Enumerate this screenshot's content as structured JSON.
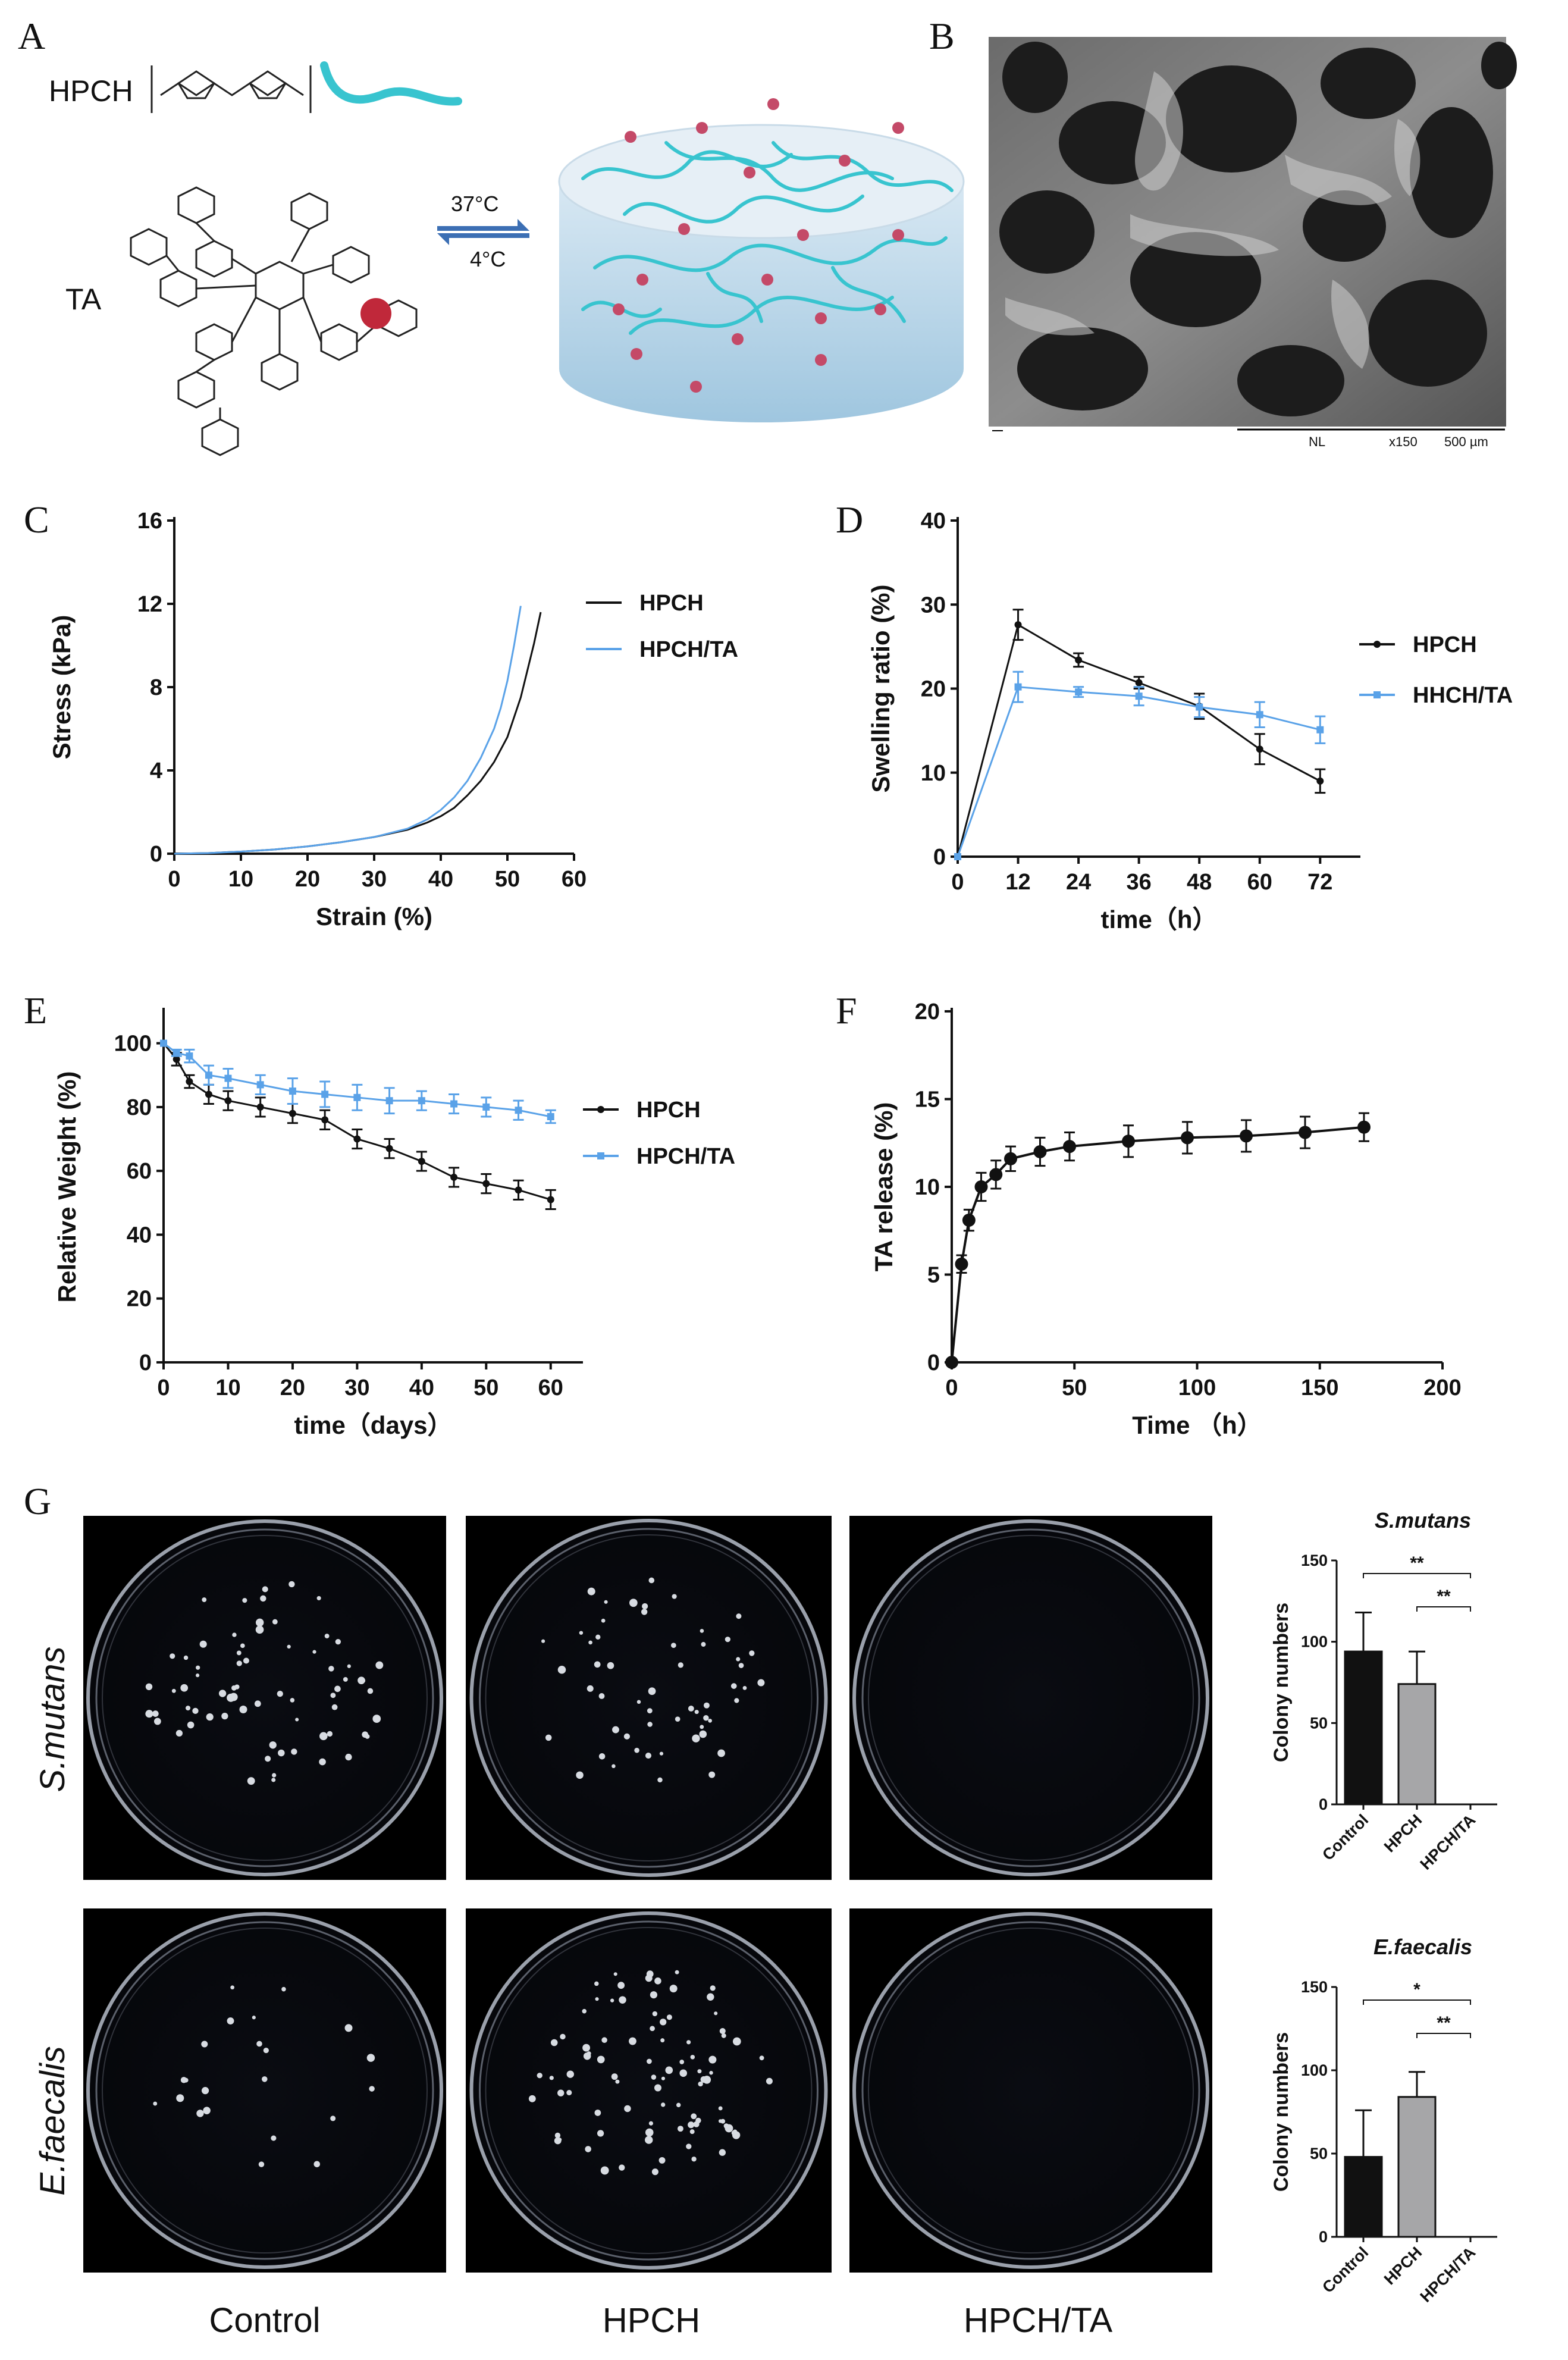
{
  "panels": {
    "a": "A",
    "b": "B",
    "c": "C",
    "d": "D",
    "e": "E",
    "f": "F",
    "g": "G"
  },
  "schematic": {
    "polymer": "HPCH",
    "tannic_acid": "TA",
    "gel_temp": "37°C",
    "sol_temp": "4°C",
    "colors": {
      "chain": "#38c4cf",
      "particle": "#c0283a",
      "gel": "#c2dfee"
    }
  },
  "sem": {
    "detector": "NL",
    "magnification": "x150",
    "scale_bar": "500 µm"
  },
  "colors": {
    "black": "#111111",
    "blue": "#5aa2e8",
    "gray": "#a6a6a8"
  },
  "chart_data": [
    {
      "id": "C",
      "type": "line",
      "xlabel": "Strain (%)",
      "ylabel": "Stress (kPa)",
      "xlim": [
        0,
        60
      ],
      "ylim": [
        0,
        16
      ],
      "xticks": [
        "0",
        "10",
        "20",
        "30",
        "40",
        "50",
        "60"
      ],
      "yticks": [
        "0",
        "4",
        "8",
        "12",
        "16"
      ],
      "series": [
        {
          "name": "HPCH",
          "x": [
            0,
            5,
            10,
            15,
            20,
            25,
            30,
            35,
            38,
            40,
            42,
            44,
            46,
            48,
            50,
            52,
            53,
            54,
            55
          ],
          "y": [
            0,
            0.03,
            0.1,
            0.2,
            0.35,
            0.55,
            0.8,
            1.15,
            1.5,
            1.8,
            2.2,
            2.8,
            3.5,
            4.4,
            5.6,
            7.5,
            8.8,
            10.1,
            11.6
          ]
        },
        {
          "name": "HPCH/TA",
          "x": [
            0,
            5,
            10,
            15,
            20,
            25,
            30,
            35,
            38,
            40,
            42,
            44,
            46,
            48,
            49,
            50,
            51,
            52
          ],
          "y": [
            0,
            0.03,
            0.1,
            0.2,
            0.35,
            0.55,
            0.8,
            1.2,
            1.65,
            2.1,
            2.7,
            3.5,
            4.6,
            6.0,
            7.0,
            8.3,
            10.0,
            11.9
          ]
        }
      ]
    },
    {
      "id": "D",
      "type": "line",
      "xlabel": "time（h）",
      "ylabel": "Swelling ratio (%)",
      "xlim": [
        0,
        80
      ],
      "ylim": [
        0,
        40
      ],
      "xticks": [
        "0",
        "12",
        "24",
        "36",
        "48",
        "60",
        "72"
      ],
      "yticks": [
        "0",
        "10",
        "20",
        "30",
        "40"
      ],
      "series": [
        {
          "name": "HPCH",
          "x": [
            0,
            12,
            24,
            36,
            48,
            60,
            72
          ],
          "y": [
            0,
            27.6,
            23.4,
            20.7,
            17.9,
            12.8,
            9.0
          ],
          "err": [
            0,
            1.8,
            0.8,
            0.7,
            1.5,
            1.8,
            1.4
          ]
        },
        {
          "name": "HHCH/TA",
          "x": [
            0,
            12,
            24,
            36,
            48,
            60,
            72
          ],
          "y": [
            0,
            20.2,
            19.6,
            19.1,
            17.8,
            16.9,
            15.1
          ],
          "err": [
            0,
            1.8,
            0.6,
            1.1,
            1.2,
            1.5,
            1.6
          ]
        }
      ]
    },
    {
      "id": "E",
      "type": "line",
      "xlabel": "time（days）",
      "ylabel": "Relative Weight (%)",
      "xlim": [
        0,
        65
      ],
      "ylim": [
        0,
        110
      ],
      "xticks": [
        "0",
        "10",
        "20",
        "30",
        "40",
        "50",
        "60"
      ],
      "yticks": [
        "0",
        "20",
        "40",
        "60",
        "80",
        "100"
      ],
      "series": [
        {
          "name": "HPCH",
          "x": [
            0,
            2,
            4,
            7,
            10,
            15,
            20,
            25,
            30,
            35,
            40,
            45,
            50,
            55,
            60
          ],
          "y": [
            100,
            95,
            88,
            84,
            82,
            80,
            78,
            76,
            70,
            67,
            63,
            58,
            56,
            54,
            51
          ],
          "err": [
            0,
            2,
            2,
            3,
            3,
            3,
            3,
            3,
            3,
            3,
            3,
            3,
            3,
            3,
            3
          ]
        },
        {
          "name": "HPCH/TA",
          "x": [
            0,
            2,
            4,
            7,
            10,
            15,
            20,
            25,
            30,
            35,
            40,
            45,
            50,
            55,
            60
          ],
          "y": [
            100,
            97,
            96,
            90,
            89,
            87,
            85,
            84,
            83,
            82,
            82,
            81,
            80,
            79,
            77
          ],
          "err": [
            0,
            1,
            2,
            3,
            3,
            3,
            4,
            4,
            4,
            4,
            3,
            3,
            3,
            3,
            2
          ]
        }
      ]
    },
    {
      "id": "F",
      "type": "line",
      "xlabel": "Time （h）",
      "ylabel": "TA release (%)",
      "xlim": [
        0,
        200
      ],
      "ylim": [
        0,
        20
      ],
      "xticks": [
        "0",
        "50",
        "100",
        "150",
        "200"
      ],
      "yticks": [
        "0",
        "5",
        "10",
        "15",
        "20"
      ],
      "series": [
        {
          "name": "TA",
          "x": [
            0,
            4,
            7,
            12,
            18,
            24,
            36,
            48,
            72,
            96,
            120,
            144,
            168
          ],
          "y": [
            0,
            5.6,
            8.1,
            10.0,
            10.7,
            11.6,
            12.0,
            12.3,
            12.6,
            12.8,
            12.9,
            13.1,
            13.4
          ],
          "err": [
            0,
            0.5,
            0.6,
            0.8,
            0.8,
            0.7,
            0.8,
            0.8,
            0.9,
            0.9,
            0.9,
            0.9,
            0.8
          ]
        }
      ]
    },
    {
      "id": "G1",
      "type": "bar",
      "title": "S.mutans",
      "ylabel": "Colony numbers",
      "ylim": [
        0,
        150
      ],
      "yticks": [
        "0",
        "50",
        "100",
        "150"
      ],
      "categories": [
        "Control",
        "HPCH",
        "HPCH/TA"
      ],
      "values": [
        94,
        74,
        0
      ],
      "err": [
        24,
        20,
        0
      ],
      "bar_colors": [
        "#111111",
        "#a6a6a8",
        "#ffffff"
      ],
      "significance": [
        "**",
        "**"
      ]
    },
    {
      "id": "G2",
      "type": "bar",
      "title": "E.faecalis",
      "ylabel": "Colony numbers",
      "ylim": [
        0,
        150
      ],
      "yticks": [
        "0",
        "50",
        "100",
        "150"
      ],
      "categories": [
        "Control",
        "HPCH",
        "HPCH/TA"
      ],
      "values": [
        48,
        84,
        0
      ],
      "err": [
        28,
        15,
        0
      ],
      "bar_colors": [
        "#111111",
        "#a6a6a8",
        "#ffffff"
      ],
      "significance": [
        "*",
        "**"
      ]
    }
  ],
  "plates": {
    "columns": [
      "Control",
      "HPCH",
      "HPCH/TA"
    ],
    "rows": [
      "S.mutans",
      "E.faecalis"
    ]
  }
}
